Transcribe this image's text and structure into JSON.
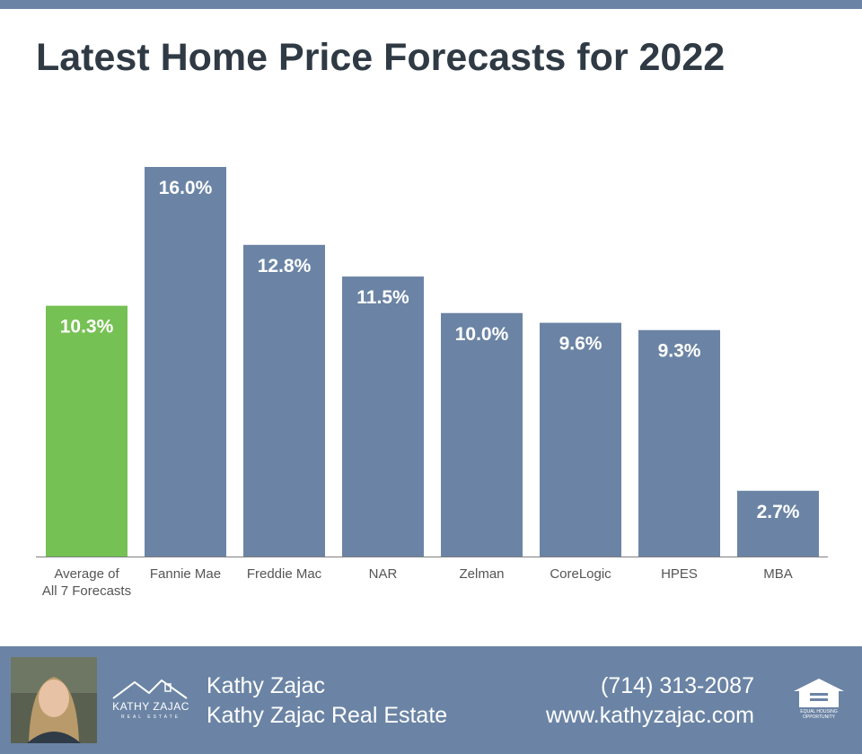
{
  "title": "Latest Home Price Forecasts for 2022",
  "colors": {
    "stripe": "#6b84a5",
    "bar": "#6b84a5",
    "highlight": "#76c154",
    "title": "#2f3a44"
  },
  "chart_data": {
    "type": "bar",
    "title": "Latest Home Price Forecasts for 2022",
    "xlabel": "",
    "ylabel": "",
    "ylim": [
      0,
      16.0
    ],
    "grid": false,
    "categories": [
      [
        "Average of",
        "All 7 Forecasts"
      ],
      [
        "Fannie Mae"
      ],
      [
        "Freddie Mac"
      ],
      [
        "NAR"
      ],
      [
        "Zelman"
      ],
      [
        "CoreLogic"
      ],
      [
        "HPES"
      ],
      [
        "MBA"
      ]
    ],
    "values": [
      10.3,
      16.0,
      12.8,
      11.5,
      10.0,
      9.6,
      9.3,
      2.7
    ],
    "data_labels": [
      "10.3%",
      "16.0%",
      "12.8%",
      "11.5%",
      "10.0%",
      "9.6%",
      "9.3%",
      "2.7%"
    ],
    "highlight_index": 0
  },
  "footer": {
    "photo_icon": "agent-photo",
    "logo_text": "KATHY ZAJAC",
    "logo_sub": "REAL ESTATE",
    "name": "Kathy Zajac",
    "company": "Kathy Zajac Real Estate",
    "phone": "(714) 313-2087",
    "website": "www.kathyzajac.com",
    "eho_icon": "equal-housing-icon",
    "eho_text": [
      "EQUAL HOUSING",
      "OPPORTUNITY"
    ]
  }
}
